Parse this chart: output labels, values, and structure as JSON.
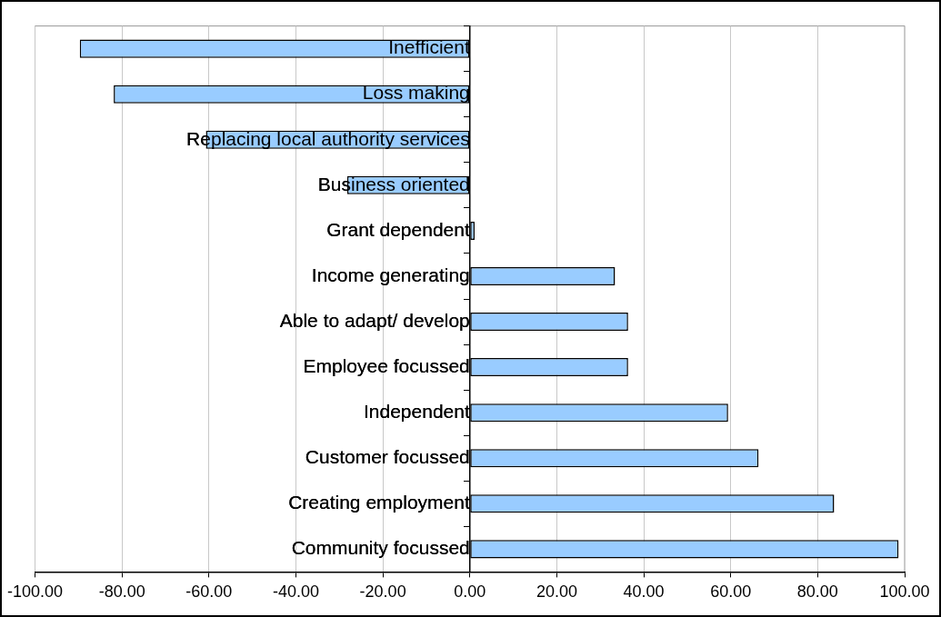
{
  "chart_data": {
    "type": "bar",
    "orientation": "horizontal",
    "categories": [
      "Inefficient",
      "Loss making",
      "Replacing local authority services",
      "Business oriented",
      "Grant dependent",
      "Income generating",
      "Able to adapt/ develop",
      "Employee focussed",
      "Independent",
      "Customer focussed",
      "Creating employment",
      "Community focussed"
    ],
    "values": [
      -89.7,
      -81.9,
      -60.7,
      -28.2,
      1.1,
      33.4,
      36.4,
      36.4,
      59.4,
      66.4,
      83.8,
      98.6
    ],
    "color": "#99ccff",
    "xlim": [
      -100,
      100
    ],
    "xticks": [
      {
        "value": -100,
        "label": "-100.00"
      },
      {
        "value": -80,
        "label": "-80.00"
      },
      {
        "value": -60,
        "label": "-60.00"
      },
      {
        "value": -40,
        "label": "-40.00"
      },
      {
        "value": -20,
        "label": "-20.00"
      },
      {
        "value": 0,
        "label": "0.00"
      },
      {
        "value": 20,
        "label": "20.00"
      },
      {
        "value": 40,
        "label": "40.00"
      },
      {
        "value": 60,
        "label": "60.00"
      },
      {
        "value": 80,
        "label": "80.00"
      },
      {
        "value": 100,
        "label": "100.00"
      }
    ],
    "grid": "x",
    "legend": false
  }
}
